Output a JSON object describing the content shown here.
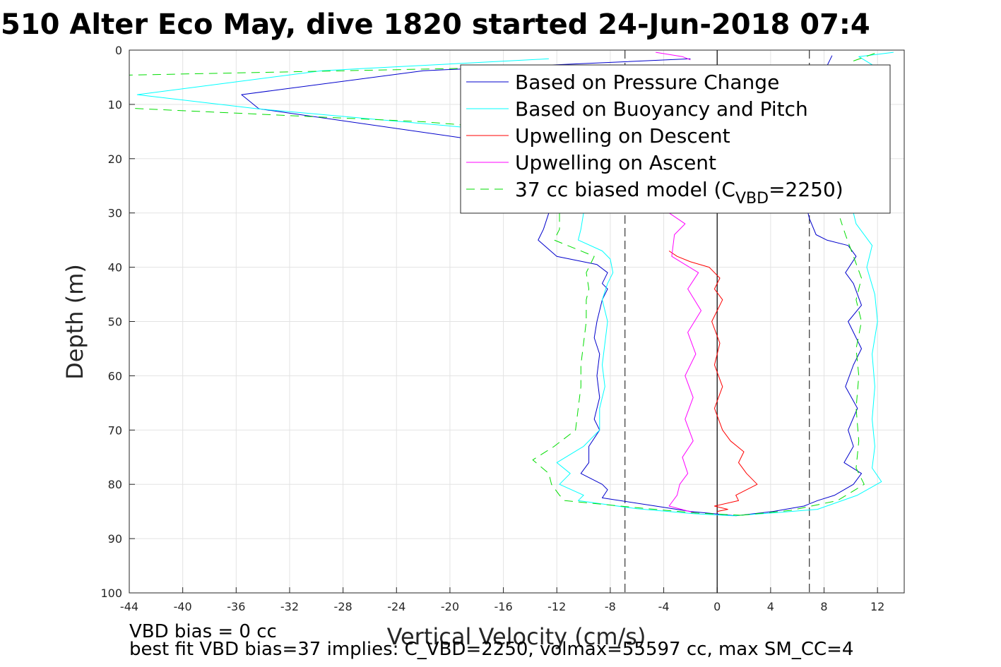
{
  "chart_data": {
    "type": "line",
    "title": "510 Alter Eco May, dive 1820 started 24-Jun-2018 07:4",
    "xlabel": "Vertical Velocity (cm/s)",
    "ylabel": "Depth (m)",
    "xlim": [
      -44,
      14
    ],
    "ylim": [
      0,
      100
    ],
    "y_reversed": true,
    "grid": true,
    "xticks": [
      "-44",
      "-40",
      "-36",
      "-32",
      "-28",
      "-24",
      "-20",
      "-16",
      "-12",
      "-8",
      "-4",
      "0",
      "4",
      "8",
      "12"
    ],
    "yticks": [
      "0",
      "10",
      "20",
      "30",
      "40",
      "50",
      "60",
      "70",
      "80",
      "90",
      "100"
    ],
    "legend_position": "top-right",
    "legend": [
      {
        "text": "Based on Pressure Change",
        "color": "#0000cc",
        "dash": "solid"
      },
      {
        "text": "Based on Buoyancy and Pitch",
        "color": "#00ffff",
        "dash": "solid"
      },
      {
        "text": "Upwelling on Descent",
        "color": "#ff0000",
        "dash": "solid"
      },
      {
        "text": "Upwelling on Ascent",
        "color": "#ff00ff",
        "dash": "solid"
      },
      {
        "text": "37 cc biased model (C",
        "sub": "VBD",
        "suffix": "=2250)",
        "color": "#00dd00",
        "dash": "dashed"
      }
    ],
    "reference_lines": [
      {
        "x": -6.9,
        "style": "dashed",
        "color": "#333333"
      },
      {
        "x": 6.9,
        "style": "dashed",
        "color": "#333333"
      },
      {
        "x": 0,
        "style": "solid",
        "color": "#000000"
      }
    ],
    "series": [
      {
        "name": "Based on Pressure Change",
        "color": "#0000cc",
        "dash": "solid",
        "points": [
          [
            -2,
            1.6
          ],
          [
            -22,
            3.8
          ],
          [
            -35.6,
            8.2
          ],
          [
            -34.3,
            10.8
          ],
          [
            -19,
            16.2
          ],
          [
            -12.6,
            30
          ],
          [
            -13,
            33
          ],
          [
            -13.4,
            35
          ],
          [
            -12,
            38
          ],
          [
            -9,
            39.5
          ],
          [
            -8.2,
            41
          ],
          [
            -8.6,
            43
          ],
          [
            -8.2,
            44
          ],
          [
            -8.6,
            46
          ],
          [
            -9,
            50
          ],
          [
            -9.2,
            53
          ],
          [
            -8.8,
            56
          ],
          [
            -9,
            60
          ],
          [
            -8.8,
            64
          ],
          [
            -9.2,
            68
          ],
          [
            -8.8,
            70
          ],
          [
            -9.6,
            73
          ],
          [
            -9.6,
            76
          ],
          [
            -10.2,
            78
          ],
          [
            -8.6,
            80
          ],
          [
            -8.2,
            81
          ],
          [
            -8.6,
            82.5
          ],
          [
            -4.6,
            84
          ],
          [
            -2,
            85
          ],
          [
            1.4,
            85.8
          ]
        ]
      },
      {
        "name": "Based on Pressure Change",
        "color": "#0000cc",
        "dash": "solid",
        "points": [
          [
            1.4,
            85.8
          ],
          [
            4.2,
            85
          ],
          [
            6.5,
            84
          ],
          [
            7.5,
            83
          ],
          [
            8.8,
            82
          ],
          [
            10.2,
            80
          ],
          [
            10.8,
            78
          ],
          [
            9.5,
            76
          ],
          [
            10.2,
            73
          ],
          [
            9.8,
            70
          ],
          [
            10.5,
            66
          ],
          [
            9.6,
            62
          ],
          [
            10.2,
            58
          ],
          [
            10.8,
            55
          ],
          [
            9.8,
            50
          ],
          [
            10.8,
            47
          ],
          [
            10.2,
            43
          ],
          [
            9.6,
            41
          ],
          [
            10.4,
            38
          ],
          [
            9.8,
            36
          ],
          [
            8.2,
            35
          ],
          [
            7.4,
            34
          ],
          [
            6.9,
            31
          ],
          [
            6.8,
            30
          ]
        ]
      },
      {
        "name": "Based on Pressure Change",
        "color": "#0000cc",
        "dash": "solid",
        "points": [
          [
            8.2,
            3
          ],
          [
            8.6,
            1
          ]
        ]
      },
      {
        "name": "Based on Buoyancy and Pitch",
        "color": "#00ffff",
        "dash": "solid",
        "points": [
          [
            -12.6,
            1.6
          ],
          [
            -29.6,
            3.8
          ],
          [
            -43.4,
            8.2
          ],
          [
            -34.4,
            10.8
          ],
          [
            -19,
            14.2
          ],
          [
            -10,
            30
          ],
          [
            -10.2,
            33
          ],
          [
            -10.4,
            35
          ],
          [
            -8.6,
            37
          ],
          [
            -8,
            38.5
          ],
          [
            -7.8,
            41
          ],
          [
            -8.2,
            43
          ],
          [
            -8.6,
            46
          ],
          [
            -8.2,
            50
          ],
          [
            -8.4,
            54
          ],
          [
            -8.6,
            58
          ],
          [
            -8.4,
            62
          ],
          [
            -8.8,
            66
          ],
          [
            -8.8,
            70
          ],
          [
            -10,
            73
          ],
          [
            -12,
            76
          ],
          [
            -11,
            78
          ],
          [
            -11.8,
            80
          ],
          [
            -10,
            82
          ],
          [
            -10.4,
            83
          ],
          [
            -6,
            84.5
          ],
          [
            -1.8,
            85.4
          ],
          [
            1.2,
            85.8
          ]
        ]
      },
      {
        "name": "Based on Buoyancy and Pitch",
        "color": "#00ffff",
        "dash": "solid",
        "points": [
          [
            1.2,
            85.8
          ],
          [
            4.5,
            85.2
          ],
          [
            7.5,
            84.6
          ],
          [
            10.5,
            82
          ],
          [
            12.3,
            79.5
          ],
          [
            11.6,
            77
          ],
          [
            11.8,
            73
          ],
          [
            11.6,
            68
          ],
          [
            11.8,
            62
          ],
          [
            11.6,
            56
          ],
          [
            12,
            50
          ],
          [
            11.8,
            45
          ],
          [
            11.2,
            40
          ],
          [
            11.6,
            36
          ],
          [
            10.4,
            32
          ],
          [
            10.2,
            30
          ]
        ]
      },
      {
        "name": "Based on Buoyancy and Pitch",
        "color": "#00ffff",
        "dash": "solid",
        "points": [
          [
            11.8,
            3
          ],
          [
            10.6,
            1.2
          ],
          [
            13.2,
            0.4
          ]
        ]
      },
      {
        "name": "Upwelling on Descent",
        "color": "#ff0000",
        "dash": "solid",
        "points": [
          [
            -3.6,
            37
          ],
          [
            -3,
            38
          ],
          [
            -2,
            39
          ],
          [
            -0.6,
            40
          ],
          [
            0.2,
            42
          ],
          [
            -0.2,
            44
          ],
          [
            0.4,
            46
          ],
          [
            -0.4,
            50
          ],
          [
            0.2,
            54
          ],
          [
            -0.2,
            58
          ],
          [
            0.4,
            62
          ],
          [
            -0.2,
            66
          ],
          [
            0.4,
            70
          ],
          [
            1,
            72
          ],
          [
            2,
            74
          ],
          [
            1.6,
            76
          ],
          [
            2.2,
            78
          ],
          [
            3,
            80
          ],
          [
            1.4,
            82
          ],
          [
            1.6,
            83
          ],
          [
            -0.2,
            84
          ],
          [
            0.8,
            84.6
          ],
          [
            0,
            85
          ]
        ]
      },
      {
        "name": "Upwelling on Ascent",
        "color": "#ff00ff",
        "dash": "solid",
        "points": [
          [
            -1.6,
            85.3
          ],
          [
            -3.6,
            84
          ],
          [
            -3,
            82
          ],
          [
            -2.8,
            80
          ],
          [
            -2.2,
            78
          ],
          [
            -2.6,
            75
          ],
          [
            -1.8,
            72
          ],
          [
            -2.4,
            68
          ],
          [
            -1.8,
            64
          ],
          [
            -2.4,
            60
          ],
          [
            -1.6,
            56
          ],
          [
            -2.2,
            52
          ],
          [
            -1.2,
            48
          ],
          [
            -2.2,
            44
          ],
          [
            -1.4,
            41
          ],
          [
            -3.4,
            38
          ],
          [
            -3.2,
            34
          ],
          [
            -2.4,
            32
          ],
          [
            -3.6,
            30
          ]
        ]
      },
      {
        "name": "Upwelling on Ascent",
        "color": "#ff00ff",
        "dash": "solid",
        "points": [
          [
            -4.6,
            0.4
          ],
          [
            -2.6,
            1.2
          ],
          [
            -2,
            1.8
          ]
        ]
      },
      {
        "name": "37 cc biased model (CVBD=2250)",
        "color": "#00dd00",
        "dash": "dashed",
        "points": [
          [
            -7.8,
            2.8
          ],
          [
            -44,
            4.6
          ],
          [
            -44,
            10.7
          ],
          [
            -22,
            13.2
          ],
          [
            -17,
            14.2
          ],
          [
            -11.8,
            30
          ],
          [
            -11.8,
            33
          ],
          [
            -12.2,
            35
          ],
          [
            -9.2,
            38
          ],
          [
            -9.8,
            41
          ],
          [
            -9.6,
            44
          ],
          [
            -9.8,
            46
          ],
          [
            -9.8,
            50
          ],
          [
            -10,
            54
          ],
          [
            -10.2,
            58
          ],
          [
            -10.2,
            62
          ],
          [
            -10.4,
            66
          ],
          [
            -10.6,
            70
          ],
          [
            -12.2,
            73
          ],
          [
            -13.8,
            75.5
          ],
          [
            -12.6,
            78
          ],
          [
            -12.4,
            80
          ],
          [
            -11.8,
            82
          ],
          [
            -11.4,
            83
          ],
          [
            -5.6,
            84.4
          ],
          [
            -1.5,
            85.3
          ],
          [
            1.8,
            85.7
          ]
        ]
      },
      {
        "name": "37 cc biased model (CVBD=2250)",
        "color": "#00dd00",
        "dash": "dashed",
        "points": [
          [
            1.8,
            85.7
          ],
          [
            5.5,
            84.8
          ],
          [
            9,
            83
          ],
          [
            11,
            80
          ],
          [
            10.4,
            77
          ],
          [
            10.6,
            72
          ],
          [
            10.4,
            66
          ],
          [
            10.6,
            60
          ],
          [
            10.4,
            55
          ],
          [
            10.8,
            50
          ],
          [
            10.4,
            46
          ],
          [
            10.8,
            42
          ],
          [
            10.2,
            38
          ],
          [
            9.6,
            34
          ],
          [
            9.2,
            31
          ]
        ]
      },
      {
        "name": "37 cc biased model (CVBD=2250)",
        "color": "#00dd00",
        "dash": "dashed",
        "points": [
          [
            10.2,
            2
          ],
          [
            11.8,
            0.6
          ]
        ]
      }
    ]
  },
  "footnotes": {
    "line1": "VBD bias = 0 cc",
    "line2": "best fit VBD bias=37 implies: C_VBD=2250, volmax=55597 cc, max SM_CC=4"
  }
}
